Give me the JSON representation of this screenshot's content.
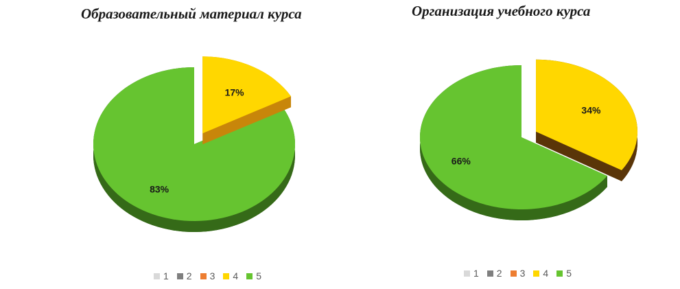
{
  "chart_data": [
    {
      "type": "pie",
      "title": "Образовательный материал курса",
      "slices": [
        {
          "label": "4",
          "value": 17,
          "data_label": "17%",
          "color": "#ffd700",
          "side": "#c8860a",
          "exploded": true
        },
        {
          "label": "5",
          "value": 83,
          "data_label": "83%",
          "color": "#66c430",
          "side": "#356a18",
          "exploded": false
        }
      ],
      "legend": {
        "position": "bottom",
        "entries": [
          {
            "label": "1",
            "color": "#d9d9d9"
          },
          {
            "label": "2",
            "color": "#7f7f7f"
          },
          {
            "label": "3",
            "color": "#ed7d31"
          },
          {
            "label": "4",
            "color": "#ffd700"
          },
          {
            "label": "5",
            "color": "#66c430"
          }
        ]
      }
    },
    {
      "type": "pie",
      "title": "Организация учебного курса",
      "slices": [
        {
          "label": "4",
          "value": 34,
          "data_label": "34%",
          "color": "#ffd700",
          "side": "#5a3508",
          "exploded": true
        },
        {
          "label": "5",
          "value": 66,
          "data_label": "66%",
          "color": "#66c430",
          "side": "#356a18",
          "exploded": false
        }
      ],
      "legend": {
        "position": "bottom",
        "entries": [
          {
            "label": "1",
            "color": "#d9d9d9"
          },
          {
            "label": "2",
            "color": "#7f7f7f"
          },
          {
            "label": "3",
            "color": "#ed7d31"
          },
          {
            "label": "4",
            "color": "#ffd700"
          },
          {
            "label": "5",
            "color": "#66c430"
          }
        ]
      }
    }
  ]
}
